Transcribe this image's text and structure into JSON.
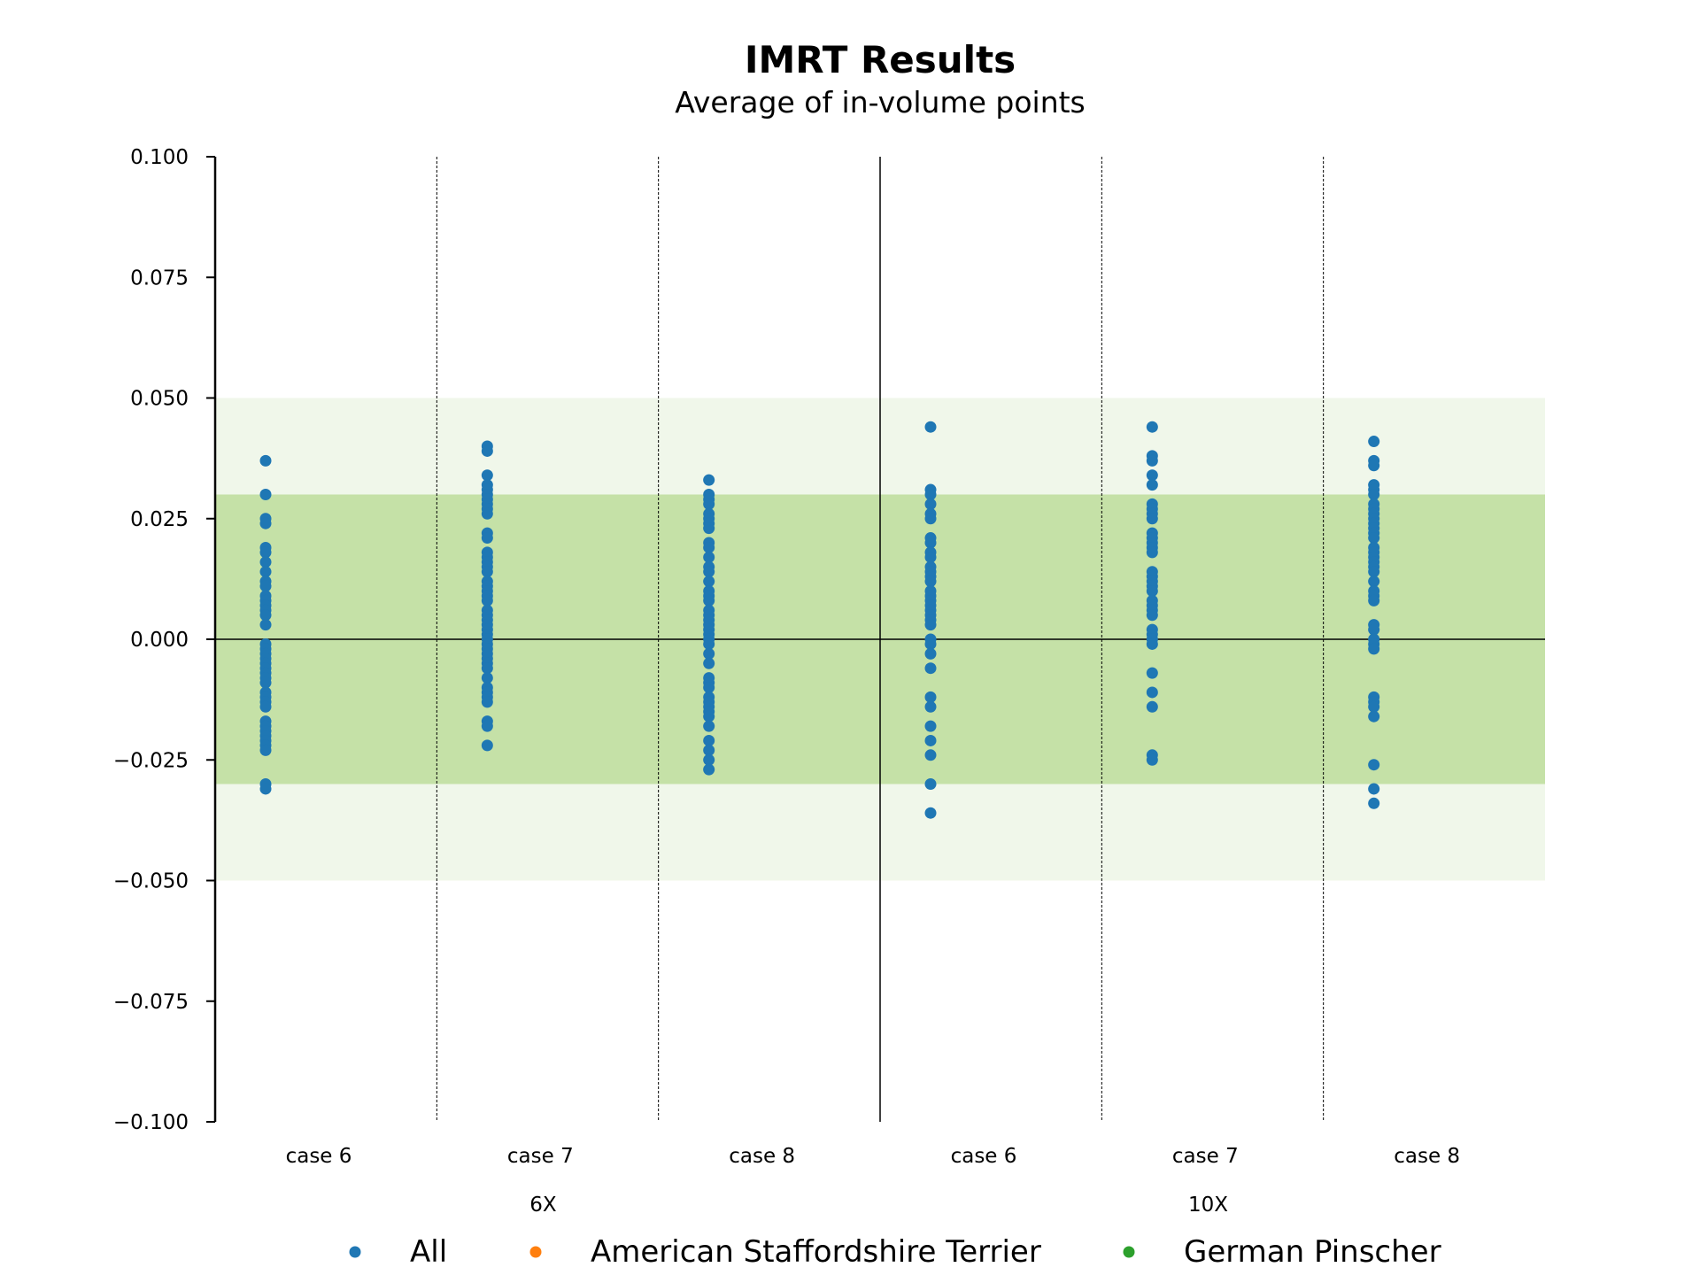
{
  "chart_data": {
    "type": "scatter",
    "title": "IMRT Results",
    "subtitle": "Average of in-volume points",
    "ylim": [
      -0.1,
      0.1
    ],
    "yticks": [
      -0.1,
      -0.075,
      -0.05,
      -0.025,
      0.0,
      0.025,
      0.05,
      0.075,
      0.1
    ],
    "ytick_labels": [
      "−0.100",
      "−0.075",
      "−0.050",
      "−0.025",
      "0.000",
      "0.025",
      "0.050",
      "0.075",
      "0.100"
    ],
    "bands": [
      {
        "from": -0.05,
        "to": 0.05,
        "color": "#f0f7ea"
      },
      {
        "from": -0.03,
        "to": 0.03,
        "color": "#c5e1a7"
      }
    ],
    "zero_line": true,
    "groups": [
      {
        "label": "6X",
        "categories": [
          "case 6",
          "case 7",
          "case 8"
        ]
      },
      {
        "label": "10X",
        "categories": [
          "case 6",
          "case 7",
          "case 8"
        ]
      }
    ],
    "legend": {
      "placement": "bottom",
      "entries": [
        {
          "name": "All",
          "color": "#1f77b4"
        },
        {
          "name": "American Staffordshire Terrier",
          "color": "#ff7f0e"
        },
        {
          "name": "German Pinscher",
          "color": "#2ca02c"
        }
      ]
    },
    "series": [
      {
        "name": "All",
        "color": "#1f77b4",
        "points": [
          [
            0,
            [
              0.037,
              0.03,
              0.025,
              0.024,
              0.019,
              0.018,
              0.016,
              0.014,
              0.012,
              0.011,
              0.009,
              0.008,
              0.007,
              0.006,
              0.005,
              0.003,
              -0.001,
              -0.002,
              -0.003,
              -0.004,
              -0.005,
              -0.006,
              -0.007,
              -0.008,
              -0.009,
              -0.011,
              -0.012,
              -0.013,
              -0.014,
              -0.017,
              -0.018,
              -0.019,
              -0.02,
              -0.021,
              -0.022,
              -0.023,
              -0.03,
              -0.031
            ]
          ],
          [
            1,
            [
              0.04,
              0.039,
              0.034,
              0.032,
              0.031,
              0.03,
              0.029,
              0.028,
              0.027,
              0.026,
              0.022,
              0.021,
              0.018,
              0.017,
              0.016,
              0.015,
              0.014,
              0.012,
              0.011,
              0.01,
              0.009,
              0.008,
              0.006,
              0.005,
              0.004,
              0.003,
              0.002,
              0.001,
              0.0,
              -0.001,
              -0.002,
              -0.003,
              -0.004,
              -0.005,
              -0.006,
              -0.008,
              -0.01,
              -0.011,
              -0.012,
              -0.013,
              -0.017,
              -0.018,
              -0.022
            ]
          ],
          [
            2,
            [
              0.033,
              0.03,
              0.029,
              0.028,
              0.026,
              0.025,
              0.024,
              0.023,
              0.02,
              0.019,
              0.017,
              0.015,
              0.014,
              0.012,
              0.01,
              0.009,
              0.008,
              0.006,
              0.005,
              0.004,
              0.003,
              0.002,
              0.001,
              0.0,
              -0.001,
              -0.003,
              -0.005,
              -0.008,
              -0.009,
              -0.01,
              -0.012,
              -0.013,
              -0.014,
              -0.015,
              -0.016,
              -0.018,
              -0.021,
              -0.023,
              -0.025,
              -0.027
            ]
          ],
          [
            3,
            [
              0.044,
              0.031,
              0.03,
              0.028,
              0.026,
              0.025,
              0.021,
              0.02,
              0.018,
              0.017,
              0.015,
              0.014,
              0.013,
              0.012,
              0.01,
              0.009,
              0.008,
              0.007,
              0.006,
              0.005,
              0.004,
              0.003,
              0.0,
              -0.001,
              -0.003,
              -0.006,
              -0.012,
              -0.014,
              -0.018,
              -0.021,
              -0.024,
              -0.03,
              -0.036
            ]
          ],
          [
            4,
            [
              0.044,
              0.038,
              0.037,
              0.034,
              0.032,
              0.028,
              0.027,
              0.026,
              0.025,
              0.022,
              0.021,
              0.02,
              0.019,
              0.018,
              0.014,
              0.013,
              0.012,
              0.011,
              0.01,
              0.008,
              0.007,
              0.006,
              0.005,
              0.002,
              0.001,
              0.0,
              -0.001,
              -0.007,
              -0.011,
              -0.014,
              -0.024,
              -0.025
            ]
          ],
          [
            5,
            [
              0.041,
              0.037,
              0.036,
              0.032,
              0.031,
              0.03,
              0.028,
              0.027,
              0.026,
              0.025,
              0.024,
              0.023,
              0.022,
              0.021,
              0.019,
              0.018,
              0.017,
              0.016,
              0.015,
              0.014,
              0.012,
              0.01,
              0.009,
              0.008,
              0.003,
              0.002,
              0.0,
              -0.001,
              -0.002,
              -0.012,
              -0.013,
              -0.014,
              -0.016,
              -0.026,
              -0.031,
              -0.034
            ]
          ]
        ]
      }
    ]
  }
}
